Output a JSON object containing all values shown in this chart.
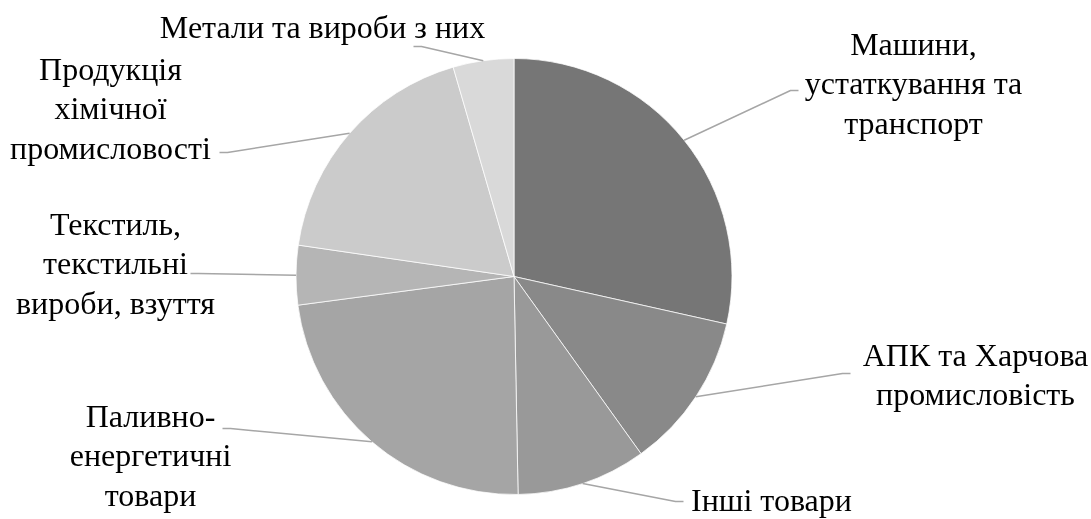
{
  "chart_data": {
    "type": "pie",
    "categories": [
      "Машини, устаткування та транспорт",
      "АПК та Харчова промисловість",
      "Інші товари",
      "Паливно-енергетичні товари",
      "Текстиль, текстильні вироби, взуття",
      "Продукція хімічної промисловості",
      "Метали та вироби з них"
    ],
    "values": [
      28.5,
      11.6,
      9.6,
      23.2,
      4.4,
      18.2,
      4.5
    ],
    "colors": [
      "#767676",
      "#898989",
      "#999999",
      "#a5a5a5",
      "#b5b5b5",
      "#cbcbcb",
      "#d9d9d9"
    ]
  }
}
